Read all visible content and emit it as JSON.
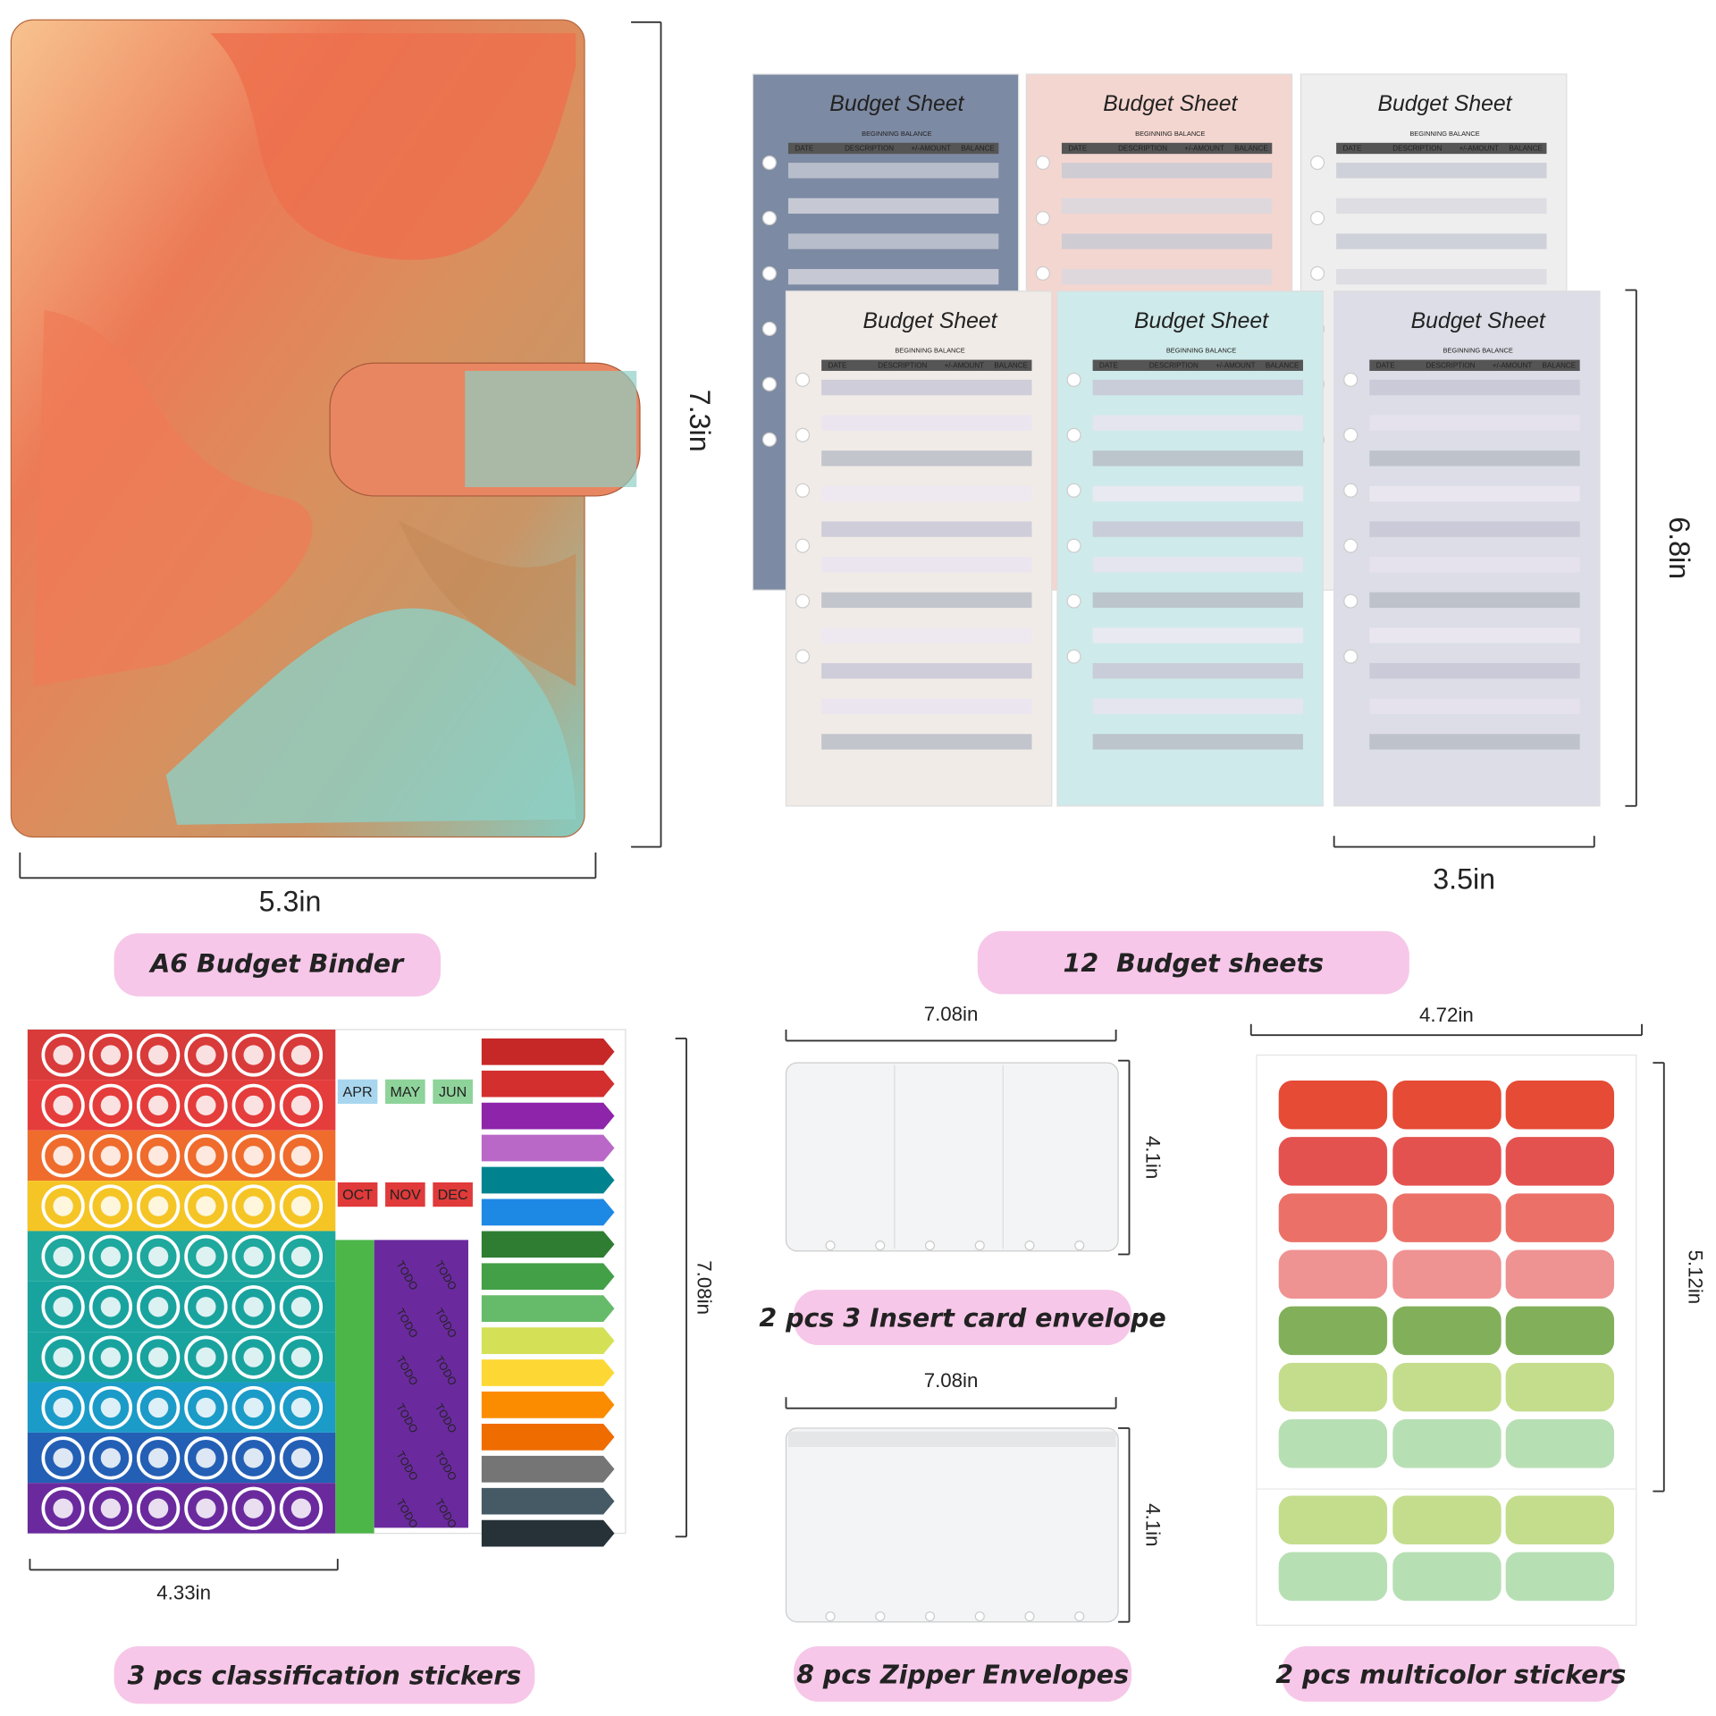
{
  "binder": {
    "width": "5.3in",
    "height": "7.3in",
    "label": "A6 Budget Binder"
  },
  "sheets": {
    "title": "Budget Sheet",
    "subtitle": "BEGINNING BALANCE",
    "columns": [
      "DATE",
      "DESCRIPTION",
      "+/-AMOUNT",
      "BALANCE"
    ],
    "width": "3.5in",
    "height": "6.8in",
    "label": "12  Budget sheets"
  },
  "stickers": {
    "width": "4.33in",
    "height": "7.08in",
    "label": "3 pcs classification stickers",
    "months": [
      "APR",
      "MAY",
      "JUN",
      "OCT",
      "NOV",
      "DEC"
    ],
    "todo": "TODO"
  },
  "card_envelope": {
    "width": "7.08in",
    "height": "4.1in",
    "label": "2 pcs 3 Insert card envelope"
  },
  "zipper_envelope": {
    "width": "7.08in",
    "height": "4.1in",
    "label": "8 pcs Zipper Envelopes"
  },
  "multicolor": {
    "width": "4.72in",
    "height": "5.12in",
    "label": "2 pcs multicolor stickers"
  }
}
